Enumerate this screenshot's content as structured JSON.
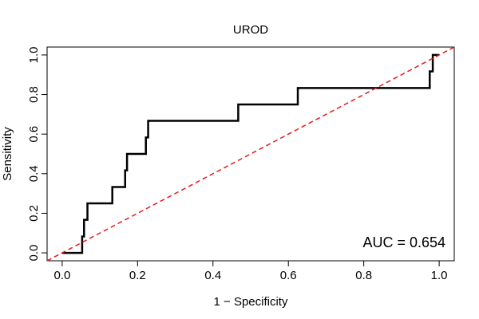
{
  "chart_data": {
    "type": "line",
    "title": "UROD",
    "xlabel": "1 − Specificity",
    "ylabel": "Sensitivity",
    "xlim": [
      -0.04,
      1.04
    ],
    "ylim": [
      -0.04,
      1.04
    ],
    "x_ticks": [
      0.0,
      0.2,
      0.4,
      0.6,
      0.8,
      1.0
    ],
    "x_tick_labels": [
      "0.0",
      "0.2",
      "0.4",
      "0.6",
      "0.8",
      "1.0"
    ],
    "y_ticks": [
      0.0,
      0.2,
      0.4,
      0.6,
      0.8,
      1.0
    ],
    "y_tick_labels": [
      "0.0",
      "0.2",
      "0.4",
      "0.6",
      "0.8",
      "1.0"
    ],
    "grid": false,
    "annotation": "AUC = 0.654",
    "series": [
      {
        "style": "solid",
        "color": "#000000",
        "points": [
          [
            0.0,
            0.0
          ],
          [
            0.053,
            0.0
          ],
          [
            0.053,
            0.083
          ],
          [
            0.058,
            0.083
          ],
          [
            0.058,
            0.167
          ],
          [
            0.067,
            0.167
          ],
          [
            0.067,
            0.25
          ],
          [
            0.133,
            0.25
          ],
          [
            0.133,
            0.333
          ],
          [
            0.167,
            0.333
          ],
          [
            0.167,
            0.417
          ],
          [
            0.172,
            0.417
          ],
          [
            0.172,
            0.5
          ],
          [
            0.222,
            0.5
          ],
          [
            0.222,
            0.583
          ],
          [
            0.228,
            0.583
          ],
          [
            0.228,
            0.667
          ],
          [
            0.467,
            0.667
          ],
          [
            0.467,
            0.75
          ],
          [
            0.625,
            0.75
          ],
          [
            0.625,
            0.833
          ],
          [
            0.975,
            0.833
          ],
          [
            0.975,
            0.917
          ],
          [
            0.983,
            0.917
          ],
          [
            0.983,
            1.0
          ],
          [
            1.0,
            1.0
          ]
        ]
      },
      {
        "style": "dashed",
        "color": "#e41a1c",
        "points": [
          [
            -0.04,
            -0.04
          ],
          [
            1.04,
            1.04
          ]
        ]
      }
    ]
  }
}
